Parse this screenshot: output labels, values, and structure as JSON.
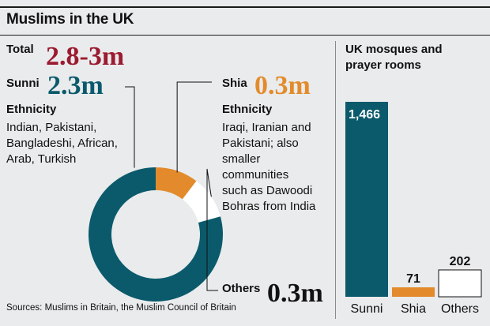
{
  "header": {
    "title": "Muslims in the UK"
  },
  "left": {
    "total_label": "Total",
    "total_value": "2.8-3m",
    "sunni_label": "Sunni",
    "sunni_value": "2.3m",
    "sunni_eth_heading": "Ethnicity",
    "sunni_eth_lines": [
      "Indian, Pakistani,",
      "Bangladeshi, African,",
      "Arab, Turkish"
    ],
    "shia_label": "Shia",
    "shia_value": "0.3m",
    "shia_eth_heading": "Ethnicity",
    "shia_eth_lines": [
      "Iraqi, Iranian and",
      "Pakistani;  also",
      "smaller",
      "communities",
      "such as Dawoodi",
      "Bohras from India"
    ],
    "others_label": "Others",
    "others_value": "0.3m",
    "source": "Sources: Muslims in Britain, the Muslim Council of Britain"
  },
  "colors": {
    "sunni": "#0b5a6c",
    "shia": "#e38b2c",
    "others": "#ffffff",
    "total": "#9b1b30"
  },
  "chart_data": [
    {
      "type": "pie",
      "title": "",
      "categories": [
        "Sunni",
        "Shia",
        "Others"
      ],
      "values": [
        2.3,
        0.3,
        0.3
      ]
    },
    {
      "type": "bar",
      "title": "UK mosques and prayer rooms",
      "categories": [
        "Sunni",
        "Shia",
        "Others"
      ],
      "values": [
        1466,
        71,
        202
      ],
      "value_labels": [
        "1,466",
        "71",
        "202"
      ],
      "xlabel": "",
      "ylabel": "",
      "grid": false
    }
  ]
}
